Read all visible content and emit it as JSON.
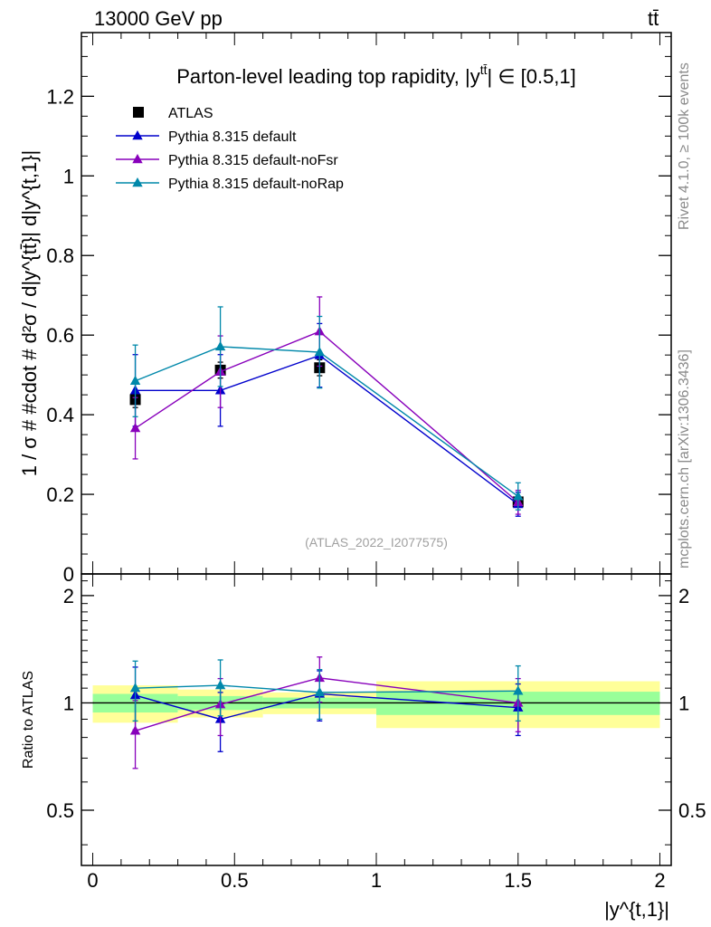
{
  "header": {
    "energy_label": "13000 GeV pp",
    "process_label": "tt̄"
  },
  "side_labels": {
    "rivet": "Rivet 4.1.0, ≥ 100k events",
    "mcplots": "mcplots.cern.ch [arXiv:1306.3436]"
  },
  "chart_data": [
    {
      "type": "line",
      "panel": "main",
      "title": "Parton-level leading top rapidity, |y",
      "title_sup": "tt̄",
      "title_suffix": "| ∈ [0.5,1]",
      "ylabel": "1 / σ # #cdot # d²σ / d|y^{tt̄}| d|y^{t,1}|",
      "ylim": [
        0,
        1.36
      ],
      "yticks": [
        0,
        0.2,
        0.4,
        0.6,
        0.8,
        1,
        1.2
      ],
      "ytick_labels": [
        "0",
        "0.2",
        "0.4",
        "0.6",
        "0.8",
        "1",
        "1.2"
      ],
      "xlim": [
        -0.04,
        2.04
      ],
      "analysis_label": "(ATLAS_2022_I2077575)",
      "series": [
        {
          "name": "ATLAS",
          "color": "#000000",
          "marker": "square",
          "x": [
            0.15,
            0.45,
            0.8,
            1.5
          ],
          "y": [
            0.438,
            0.512,
            0.518,
            0.181
          ],
          "err": [
            0.02,
            0.02,
            0.02,
            0.01
          ]
        },
        {
          "name": "Pythia 8.315 default",
          "color": "#0000cc",
          "marker": "triangle",
          "x": [
            0.15,
            0.45,
            0.8,
            1.5
          ],
          "y": [
            0.461,
            0.461,
            0.549,
            0.175
          ],
          "err": [
            0.09,
            0.09,
            0.08,
            0.03
          ]
        },
        {
          "name": "Pythia 8.315 default-noFsr",
          "color": "#8800bb",
          "marker": "triangle",
          "x": [
            0.15,
            0.45,
            0.8,
            1.5
          ],
          "y": [
            0.366,
            0.508,
            0.609,
            0.18
          ],
          "err": [
            0.077,
            0.09,
            0.087,
            0.03
          ]
        },
        {
          "name": "Pythia 8.315 default-noRap",
          "color": "#0088aa",
          "marker": "triangle",
          "x": [
            0.15,
            0.45,
            0.8,
            1.5
          ],
          "y": [
            0.485,
            0.571,
            0.557,
            0.195
          ],
          "err": [
            0.09,
            0.1,
            0.09,
            0.034
          ]
        }
      ]
    },
    {
      "type": "line",
      "panel": "ratio",
      "ylabel": "Ratio to ATLAS",
      "xlabel": "|y^{t,1}|",
      "ylim": [
        0.35,
        2.3
      ],
      "yticks": [
        0.5,
        1,
        2
      ],
      "ytick_labels": [
        "0.5",
        "1",
        "2"
      ],
      "xlim": [
        -0.04,
        2.04
      ],
      "xticks": [
        0,
        0.5,
        1,
        1.5,
        2
      ],
      "xtick_labels": [
        "0",
        "0.5",
        "1",
        "1.5",
        "2"
      ],
      "bands": [
        {
          "x0": 0,
          "x1": 0.3,
          "green": [
            0.94,
            1.06
          ],
          "yellow": [
            0.88,
            1.12
          ]
        },
        {
          "x0": 0.3,
          "x1": 0.6,
          "green": [
            0.955,
            1.045
          ],
          "yellow": [
            0.91,
            1.09
          ]
        },
        {
          "x0": 0.6,
          "x1": 1.0,
          "green": [
            0.965,
            1.035
          ],
          "yellow": [
            0.93,
            1.07
          ]
        },
        {
          "x0": 1.0,
          "x1": 2.0,
          "green": [
            0.925,
            1.075
          ],
          "yellow": [
            0.85,
            1.15
          ]
        }
      ],
      "series": [
        {
          "name": "Pythia 8.315 default",
          "color": "#0000cc",
          "x": [
            0.15,
            0.45,
            0.8,
            1.5
          ],
          "y": [
            1.05,
            0.9,
            1.06,
            0.97
          ],
          "err": [
            0.21,
            0.17,
            0.17,
            0.16
          ]
        },
        {
          "name": "Pythia 8.315 default-noFsr",
          "color": "#8800bb",
          "x": [
            0.15,
            0.45,
            0.8,
            1.5
          ],
          "y": [
            0.835,
            0.99,
            1.175,
            1.0
          ],
          "err": [
            0.18,
            0.18,
            0.17,
            0.17
          ]
        },
        {
          "name": "Pythia 8.315 default-noRap",
          "color": "#0088aa",
          "x": [
            0.15,
            0.45,
            0.8,
            1.5
          ],
          "y": [
            1.1,
            1.12,
            1.07,
            1.08
          ],
          "err": [
            0.21,
            0.2,
            0.17,
            0.19
          ]
        }
      ]
    }
  ]
}
